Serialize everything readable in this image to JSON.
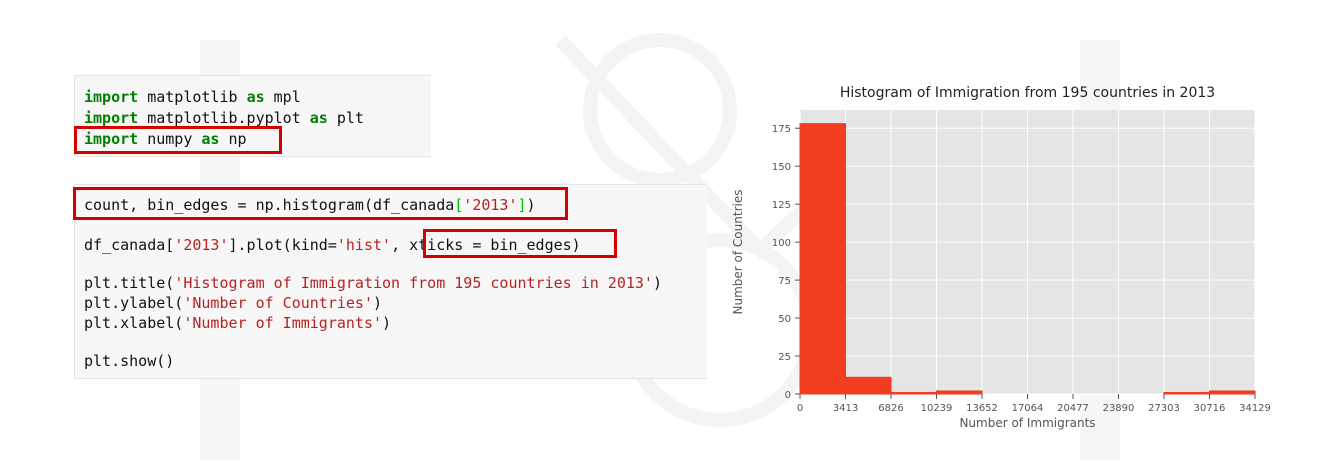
{
  "cell1": {
    "lines": [
      [
        {
          "t": "import",
          "c": "kw"
        },
        {
          "t": " matplotlib ",
          "c": ""
        },
        {
          "t": "as",
          "c": "kw"
        },
        {
          "t": " mpl",
          "c": ""
        }
      ],
      [
        {
          "t": "import",
          "c": "kw"
        },
        {
          "t": " matplotlib.pyplot ",
          "c": ""
        },
        {
          "t": "as",
          "c": "kw"
        },
        {
          "t": " plt",
          "c": ""
        }
      ],
      [
        {
          "t": "import",
          "c": "kw"
        },
        {
          "t": " numpy ",
          "c": ""
        },
        {
          "t": "as",
          "c": "kw"
        },
        {
          "t": " np",
          "c": ""
        }
      ]
    ]
  },
  "cell2": {
    "lines": [
      [
        {
          "t": "count, bin_edges = np.histogram(df_canada",
          "c": ""
        },
        {
          "t": "[",
          "c": "brk"
        },
        {
          "t": "'2013'",
          "c": "str"
        },
        {
          "t": "]",
          "c": "brk"
        },
        {
          "t": ")",
          "c": ""
        }
      ],
      [],
      [
        {
          "t": "df_canada[",
          "c": ""
        },
        {
          "t": "'2013'",
          "c": "str"
        },
        {
          "t": "].plot(kind=",
          "c": ""
        },
        {
          "t": "'hist'",
          "c": "str"
        },
        {
          "t": ", xticks = bin_edges)",
          "c": ""
        }
      ],
      [],
      [
        {
          "t": "plt.title(",
          "c": ""
        },
        {
          "t": "'Histogram of Immigration from 195 countries in 2013'",
          "c": "str"
        },
        {
          "t": ")",
          "c": ""
        }
      ],
      [
        {
          "t": "plt.ylabel(",
          "c": ""
        },
        {
          "t": "'Number of Countries'",
          "c": "str"
        },
        {
          "t": ")",
          "c": ""
        }
      ],
      [
        {
          "t": "plt.xlabel(",
          "c": ""
        },
        {
          "t": "'Number of Immigrants'",
          "c": "str"
        },
        {
          "t": ")",
          "c": ""
        }
      ],
      [],
      [
        {
          "t": "plt.show()",
          "c": ""
        }
      ]
    ]
  },
  "colors": {
    "bar": "#f23d20",
    "plot_bg": "#e5e5e5",
    "highlight": "#d40000"
  },
  "chart_data": {
    "type": "bar",
    "title": "Histogram of Immigration from 195 countries in 2013",
    "xlabel": "Number of Immigrants",
    "ylabel": "Number of Countries",
    "bin_edges": [
      0,
      3413,
      6826,
      10239,
      13652,
      17064,
      20477,
      23890,
      27303,
      30716,
      34129
    ],
    "xtick_labels": [
      "0",
      "3413",
      "6826",
      "10239",
      "13652",
      "17064",
      "20477",
      "23890",
      "27303",
      "30716",
      "34129"
    ],
    "values": [
      178,
      11,
      1,
      2,
      0,
      0,
      0,
      0,
      1,
      2
    ],
    "yticks": [
      0,
      25,
      50,
      75,
      100,
      125,
      150,
      175
    ],
    "ylim": [
      0,
      187
    ],
    "grid": true
  }
}
